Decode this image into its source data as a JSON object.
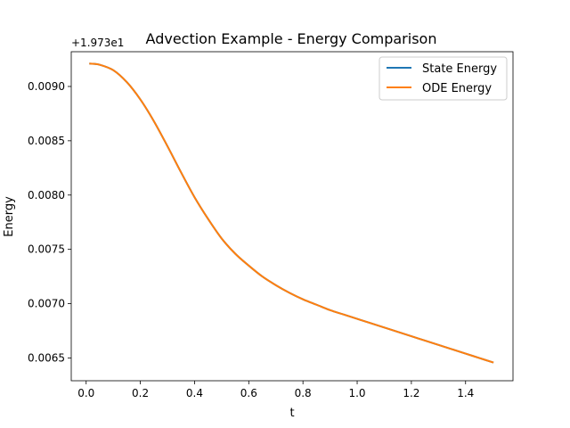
{
  "chart_data": {
    "type": "line",
    "title": "Advection Example - Energy Comparison",
    "xlabel": "t",
    "ylabel": "Energy",
    "offset_label": "+1.973e1",
    "offset_value": 19.73,
    "xlim": [
      -0.055,
      1.575
    ],
    "ylim": [
      0.00629,
      0.00932
    ],
    "xticks": [
      0.0,
      0.2,
      0.4,
      0.6,
      0.8,
      1.0,
      1.2,
      1.4
    ],
    "xtick_labels": [
      "0.0",
      "0.2",
      "0.4",
      "0.6",
      "0.8",
      "1.0",
      "1.2",
      "1.4"
    ],
    "yticks": [
      0.0065,
      0.007,
      0.0075,
      0.008,
      0.0085,
      0.009
    ],
    "ytick_labels": [
      "0.0065",
      "0.0070",
      "0.0075",
      "0.0080",
      "0.0085",
      "0.0090"
    ],
    "grid": false,
    "legend_position": "top-right",
    "x": [
      0.015,
      0.05,
      0.1,
      0.15,
      0.2,
      0.25,
      0.3,
      0.35,
      0.4,
      0.45,
      0.5,
      0.55,
      0.6,
      0.65,
      0.7,
      0.75,
      0.8,
      0.85,
      0.9,
      0.95,
      1.0,
      1.05,
      1.1,
      1.15,
      1.2,
      1.25,
      1.3,
      1.35,
      1.4,
      1.45,
      1.5
    ],
    "series": [
      {
        "name": "State Energy",
        "color": "#1f77b4",
        "values": [
          0.00921,
          0.0092,
          0.00915,
          0.00904,
          0.00888,
          0.00868,
          0.00845,
          0.00821,
          0.00798,
          0.00778,
          0.0076,
          0.00746,
          0.00735,
          0.00725,
          0.00717,
          0.0071,
          0.00704,
          0.00699,
          0.00694,
          0.0069,
          0.00686,
          0.00682,
          0.00678,
          0.00674,
          0.0067,
          0.00666,
          0.00662,
          0.00658,
          0.00654,
          0.0065,
          0.00646
        ]
      },
      {
        "name": "ODE Energy",
        "color": "#ff7f0e",
        "values": [
          0.00921,
          0.0092,
          0.00915,
          0.00904,
          0.00888,
          0.00868,
          0.00845,
          0.00821,
          0.00798,
          0.00778,
          0.0076,
          0.00746,
          0.00735,
          0.00725,
          0.00717,
          0.0071,
          0.00704,
          0.00699,
          0.00694,
          0.0069,
          0.00686,
          0.00682,
          0.00678,
          0.00674,
          0.0067,
          0.00666,
          0.00662,
          0.00658,
          0.00654,
          0.0065,
          0.00646
        ]
      }
    ]
  }
}
